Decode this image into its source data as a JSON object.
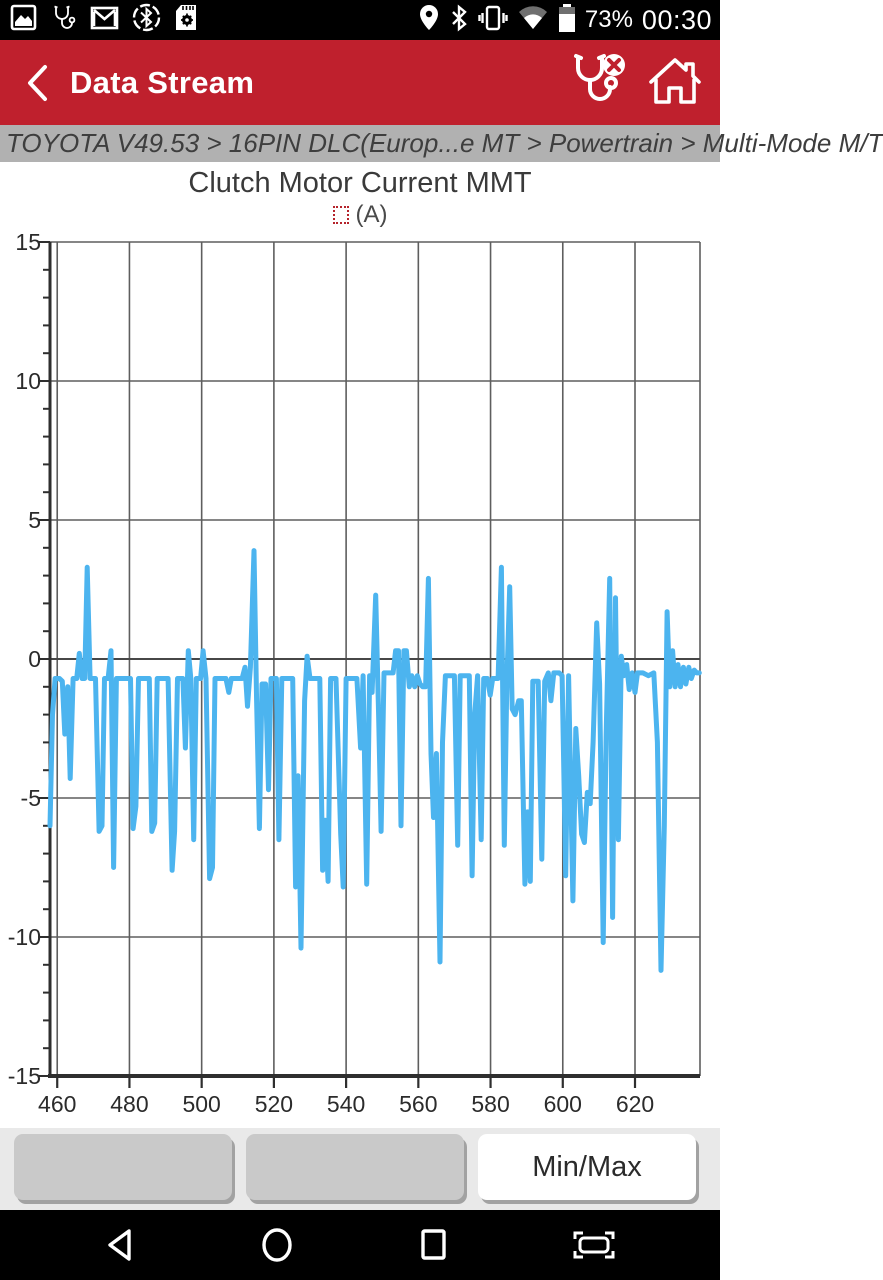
{
  "status_bar": {
    "time": "00:30",
    "battery_percent": "73%",
    "left_icons": [
      "screenshot-icon",
      "stethoscope-icon",
      "gmail-icon",
      "bluetooth-connected-icon",
      "sdcard-icon"
    ],
    "right_icons": [
      "location-icon",
      "bluetooth-icon",
      "vibrate-icon",
      "wifi-icon",
      "battery-icon"
    ]
  },
  "app_bar": {
    "title": "Data Stream",
    "background_color": "#bf202d",
    "icons": [
      "back-icon",
      "diagnostic-disconnected-icon",
      "home-icon"
    ]
  },
  "breadcrumb": {
    "text": "TOYOTA V49.53 > 16PIN DLC(Europ...e MT > Powertrain > Multi-Mode M/T"
  },
  "chart_data": {
    "type": "line",
    "title": "Clutch Motor Current MMT",
    "legend": [
      {
        "label": "(A)",
        "marker_color": "#b5232b"
      }
    ],
    "xlabel": "",
    "ylabel": "",
    "xlim": [
      458,
      638
    ],
    "ylim": [
      -15,
      15
    ],
    "xticks": [
      460,
      480,
      500,
      520,
      540,
      560,
      580,
      600,
      620
    ],
    "yticks": [
      15,
      10,
      5,
      0,
      -5,
      -10,
      -15
    ],
    "y_minor_step": 1,
    "grid": true,
    "grid_color": "#5e5e5e",
    "zero_line_color": "#474747",
    "axis_color": "#2e2e2e",
    "line_color": "#4cb4ef",
    "points": [
      [
        458.0,
        -6.0
      ],
      [
        458.7,
        -2.0
      ],
      [
        459.4,
        -0.7
      ],
      [
        460.6,
        -0.7
      ],
      [
        461.4,
        -0.8
      ],
      [
        462.1,
        -2.7
      ],
      [
        462.9,
        -1.0
      ],
      [
        463.6,
        -4.3
      ],
      [
        464.4,
        -0.7
      ],
      [
        465.4,
        -0.7
      ],
      [
        466.1,
        0.2
      ],
      [
        466.9,
        -0.7
      ],
      [
        467.6,
        -0.7
      ],
      [
        468.3,
        3.3
      ],
      [
        469.1,
        -0.7
      ],
      [
        470.6,
        -0.7
      ],
      [
        471.6,
        -6.2
      ],
      [
        472.4,
        -6.0
      ],
      [
        473.1,
        -0.7
      ],
      [
        474.1,
        -0.7
      ],
      [
        474.9,
        0.3
      ],
      [
        475.6,
        -7.5
      ],
      [
        476.4,
        -0.7
      ],
      [
        478.0,
        -0.7
      ],
      [
        479.5,
        -0.7
      ],
      [
        480.3,
        -0.7
      ],
      [
        481.0,
        -6.1
      ],
      [
        481.8,
        -5.3
      ],
      [
        482.5,
        -0.7
      ],
      [
        484.0,
        -0.7
      ],
      [
        485.5,
        -0.7
      ],
      [
        486.2,
        -6.2
      ],
      [
        487.0,
        -5.9
      ],
      [
        487.7,
        -0.7
      ],
      [
        489.2,
        -0.7
      ],
      [
        490.7,
        -0.7
      ],
      [
        491.8,
        -7.6
      ],
      [
        492.5,
        -6.2
      ],
      [
        493.3,
        -0.7
      ],
      [
        494.8,
        -0.7
      ],
      [
        495.5,
        -3.2
      ],
      [
        496.3,
        0.3
      ],
      [
        497.0,
        -0.7
      ],
      [
        497.8,
        -6.5
      ],
      [
        498.5,
        -0.7
      ],
      [
        499.7,
        -0.7
      ],
      [
        500.4,
        0.3
      ],
      [
        501.2,
        -0.7
      ],
      [
        502.2,
        -7.9
      ],
      [
        503.0,
        -7.5
      ],
      [
        503.7,
        -0.7
      ],
      [
        505.2,
        -0.7
      ],
      [
        506.7,
        -0.7
      ],
      [
        507.5,
        -1.2
      ],
      [
        508.2,
        -0.7
      ],
      [
        509.7,
        -0.7
      ],
      [
        511.2,
        -0.7
      ],
      [
        512.0,
        -0.3
      ],
      [
        512.7,
        -1.7
      ],
      [
        513.5,
        -0.3
      ],
      [
        514.5,
        3.9
      ],
      [
        515.2,
        -1.5
      ],
      [
        516.0,
        -6.1
      ],
      [
        516.7,
        -0.9
      ],
      [
        517.7,
        -0.9
      ],
      [
        518.5,
        -4.7
      ],
      [
        519.2,
        -0.7
      ],
      [
        520.7,
        -0.7
      ],
      [
        521.4,
        -6.5
      ],
      [
        522.2,
        -0.7
      ],
      [
        523.7,
        -0.7
      ],
      [
        525.2,
        -0.7
      ],
      [
        526.0,
        -8.2
      ],
      [
        526.7,
        -4.2
      ],
      [
        527.5,
        -10.4
      ],
      [
        528.5,
        -1.5
      ],
      [
        529.2,
        0.1
      ],
      [
        530.0,
        -0.7
      ],
      [
        531.5,
        -0.7
      ],
      [
        532.7,
        -0.7
      ],
      [
        533.5,
        -7.6
      ],
      [
        534.2,
        -5.8
      ],
      [
        535.0,
        -8.0
      ],
      [
        535.7,
        -0.7
      ],
      [
        537.2,
        -0.7
      ],
      [
        538.5,
        -6.3
      ],
      [
        539.2,
        -8.2
      ],
      [
        540.0,
        -0.7
      ],
      [
        541.5,
        -0.7
      ],
      [
        543.0,
        -0.7
      ],
      [
        544.0,
        -3.2
      ],
      [
        544.7,
        -0.6
      ],
      [
        545.7,
        -8.1
      ],
      [
        546.5,
        -0.6
      ],
      [
        547.2,
        -1.2
      ],
      [
        548.2,
        2.3
      ],
      [
        549.0,
        -2.0
      ],
      [
        549.7,
        -6.2
      ],
      [
        550.5,
        -0.5
      ],
      [
        552.0,
        -0.5
      ],
      [
        553.0,
        -0.5
      ],
      [
        553.7,
        0.3
      ],
      [
        554.5,
        0.3
      ],
      [
        555.2,
        -6.0
      ],
      [
        556.0,
        0.3
      ],
      [
        556.7,
        0.3
      ],
      [
        557.5,
        -1.0
      ],
      [
        558.2,
        -0.6
      ],
      [
        559.0,
        -1.0
      ],
      [
        559.7,
        -0.6
      ],
      [
        560.5,
        -0.9
      ],
      [
        561.2,
        -1.0
      ],
      [
        562.0,
        -1.0
      ],
      [
        562.8,
        2.9
      ],
      [
        563.5,
        -3.4
      ],
      [
        564.2,
        -5.7
      ],
      [
        565.0,
        -3.4
      ],
      [
        566.0,
        -10.9
      ],
      [
        566.7,
        -3.0
      ],
      [
        567.5,
        -0.6
      ],
      [
        569.0,
        -0.6
      ],
      [
        570.0,
        -0.6
      ],
      [
        570.9,
        -6.7
      ],
      [
        571.6,
        -0.6
      ],
      [
        573.1,
        -0.6
      ],
      [
        574.1,
        -0.6
      ],
      [
        574.9,
        -7.8
      ],
      [
        575.6,
        -2.0
      ],
      [
        576.4,
        -0.6
      ],
      [
        577.4,
        -6.5
      ],
      [
        578.1,
        -0.7
      ],
      [
        579.1,
        -0.7
      ],
      [
        579.9,
        -1.3
      ],
      [
        580.6,
        -0.7
      ],
      [
        582.1,
        -0.7
      ],
      [
        583.0,
        3.3
      ],
      [
        583.8,
        -6.7
      ],
      [
        584.5,
        -0.9
      ],
      [
        585.3,
        2.6
      ],
      [
        586.0,
        -1.8
      ],
      [
        586.8,
        -2.0
      ],
      [
        587.8,
        -1.5
      ],
      [
        588.5,
        -1.5
      ],
      [
        589.5,
        -8.1
      ],
      [
        590.2,
        -5.5
      ],
      [
        591.0,
        -8.0
      ],
      [
        591.7,
        -0.8
      ],
      [
        593.2,
        -0.8
      ],
      [
        594.2,
        -7.2
      ],
      [
        595.0,
        -0.8
      ],
      [
        596.0,
        -0.5
      ],
      [
        596.7,
        -1.5
      ],
      [
        597.5,
        -0.5
      ],
      [
        599.0,
        -0.5
      ],
      [
        599.8,
        -0.6
      ],
      [
        600.8,
        -7.8
      ],
      [
        601.6,
        -0.6
      ],
      [
        602.8,
        -8.7
      ],
      [
        603.6,
        -2.5
      ],
      [
        604.4,
        -4.2
      ],
      [
        605.2,
        -6.3
      ],
      [
        606.0,
        -6.6
      ],
      [
        606.8,
        -4.8
      ],
      [
        607.6,
        -5.2
      ],
      [
        608.4,
        -3.0
      ],
      [
        609.4,
        1.3
      ],
      [
        610.2,
        -0.9
      ],
      [
        611.2,
        -10.2
      ],
      [
        612.0,
        -2.8
      ],
      [
        613.0,
        2.9
      ],
      [
        613.8,
        -9.3
      ],
      [
        614.6,
        2.2
      ],
      [
        615.4,
        -6.5
      ],
      [
        616.2,
        0.1
      ],
      [
        616.9,
        -0.6
      ],
      [
        617.7,
        -0.2
      ],
      [
        618.4,
        -1.1
      ],
      [
        619.2,
        -0.5
      ],
      [
        620.0,
        -1.2
      ],
      [
        620.7,
        -0.5
      ],
      [
        622.2,
        -0.5
      ],
      [
        623.7,
        -0.6
      ],
      [
        625.2,
        -0.5
      ],
      [
        626.2,
        -3.0
      ],
      [
        627.2,
        -11.2
      ],
      [
        628.1,
        -6.0
      ],
      [
        628.9,
        1.7
      ],
      [
        629.6,
        -1.0
      ],
      [
        630.4,
        0.3
      ],
      [
        631.1,
        -1.0
      ],
      [
        631.9,
        -0.2
      ],
      [
        632.6,
        -1.0
      ],
      [
        633.4,
        -0.3
      ],
      [
        634.1,
        -0.9
      ],
      [
        634.9,
        -0.3
      ],
      [
        635.6,
        -0.7
      ],
      [
        636.4,
        -0.4
      ],
      [
        637.1,
        -0.5
      ],
      [
        637.8,
        -0.5
      ]
    ]
  },
  "footer": {
    "buttons": [
      {
        "label": ""
      },
      {
        "label": ""
      },
      {
        "label": "Min/Max"
      }
    ]
  },
  "nav_bar": {
    "icons": [
      "back",
      "home",
      "recents",
      "screenshot"
    ]
  }
}
